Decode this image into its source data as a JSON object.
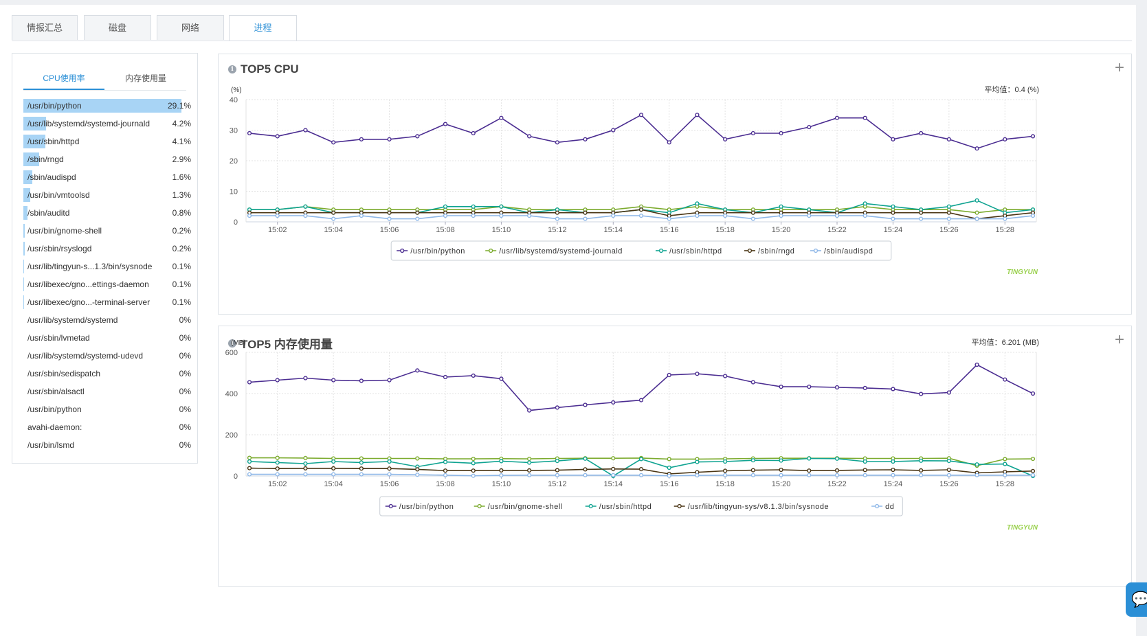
{
  "tabs": [
    {
      "label": "情报汇总"
    },
    {
      "label": "磁盘"
    },
    {
      "label": "网络"
    },
    {
      "label": "进程"
    }
  ],
  "left_panel": {
    "subtabs": [
      {
        "label": "CPU使用率"
      },
      {
        "label": "内存使用量"
      }
    ],
    "processes": [
      {
        "name": "/usr/bin/python",
        "value": "29.1%",
        "ratio": 1.0
      },
      {
        "name": "/usr/lib/systemd/systemd-journald",
        "value": "4.2%",
        "ratio": 0.144
      },
      {
        "name": "/usr/sbin/httpd",
        "value": "4.1%",
        "ratio": 0.141
      },
      {
        "name": "/sbin/rngd",
        "value": "2.9%",
        "ratio": 0.1
      },
      {
        "name": "/sbin/audispd",
        "value": "1.6%",
        "ratio": 0.055
      },
      {
        "name": "/usr/bin/vmtoolsd",
        "value": "1.3%",
        "ratio": 0.045
      },
      {
        "name": "/sbin/auditd",
        "value": "0.8%",
        "ratio": 0.027
      },
      {
        "name": "/usr/bin/gnome-shell",
        "value": "0.2%",
        "ratio": 0.007
      },
      {
        "name": "/usr/sbin/rsyslogd",
        "value": "0.2%",
        "ratio": 0.007
      },
      {
        "name": "/usr/lib/tingyun-s...1.3/bin/sysnode",
        "value": "0.1%",
        "ratio": 0.003
      },
      {
        "name": "/usr/libexec/gno...ettings-daemon",
        "value": "0.1%",
        "ratio": 0.003
      },
      {
        "name": "/usr/libexec/gno...-terminal-server",
        "value": "0.1%",
        "ratio": 0.003
      },
      {
        "name": "/usr/lib/systemd/systemd",
        "value": "0%",
        "ratio": 0
      },
      {
        "name": "/usr/sbin/lvmetad",
        "value": "0%",
        "ratio": 0
      },
      {
        "name": "/usr/lib/systemd/systemd-udevd",
        "value": "0%",
        "ratio": 0
      },
      {
        "name": "/usr/sbin/sedispatch",
        "value": "0%",
        "ratio": 0
      },
      {
        "name": "/usr/sbin/alsactl",
        "value": "0%",
        "ratio": 0
      },
      {
        "name": "/usr/bin/python",
        "value": "0%",
        "ratio": 0
      },
      {
        "name": "avahi-daemon:",
        "value": "0%",
        "ratio": 0
      },
      {
        "name": "/usr/bin/lsmd",
        "value": "0%",
        "ratio": 0
      }
    ]
  },
  "icons": {
    "info": "info-icon",
    "plus": "plus-icon",
    "chat": "chat-icon"
  },
  "colors": {
    "accent": "#2b8fd6",
    "bar": "#a8d4f5",
    "series": [
      "#4b2d91",
      "#7cab2e",
      "#0fa391",
      "#4a3514",
      "#8fb8e8"
    ]
  },
  "chart_data": [
    {
      "type": "line",
      "title": "TOP5 CPU",
      "unit_label": "(%)",
      "avg_label": "平均值：",
      "avg_value": "0.4 (%)",
      "watermark": "TINGYUN",
      "ylim": [
        0,
        40
      ],
      "yticks": [
        "0",
        "10",
        "20",
        "30",
        "40"
      ],
      "x_tick_labels": [
        "15:02",
        "15:04",
        "15:06",
        "15:08",
        "15:10",
        "15:12",
        "15:14",
        "15:16",
        "15:18",
        "15:20",
        "15:22",
        "15:24",
        "15:26",
        "15:28"
      ],
      "series": [
        {
          "name": "/usr/bin/python",
          "values": [
            29,
            28,
            30,
            26,
            27,
            27,
            28,
            32,
            29,
            34,
            28,
            26,
            27,
            30,
            35,
            26,
            35,
            27,
            29,
            29,
            31,
            34,
            34,
            27,
            29,
            27,
            24,
            27,
            28
          ]
        },
        {
          "name": "/usr/lib/systemd/systemd-journald",
          "values": [
            4,
            4,
            5,
            4,
            4,
            4,
            4,
            4,
            4,
            5,
            4,
            4,
            4,
            4,
            5,
            4,
            5,
            4,
            4,
            4,
            4,
            4,
            5,
            4,
            4,
            4,
            3,
            4,
            4
          ]
        },
        {
          "name": "/usr/sbin/httpd",
          "values": [
            4,
            4,
            5,
            3,
            3,
            3,
            3,
            5,
            5,
            5,
            3,
            4,
            3,
            3,
            4,
            3,
            6,
            4,
            3,
            5,
            4,
            3,
            6,
            5,
            4,
            5,
            7,
            3,
            4
          ]
        },
        {
          "name": "/sbin/rngd",
          "values": [
            3,
            3,
            3,
            3,
            3,
            3,
            3,
            3,
            3,
            3,
            3,
            3,
            3,
            3,
            4,
            2,
            3,
            3,
            3,
            3,
            3,
            3,
            3,
            3,
            3,
            3,
            1,
            2,
            3
          ]
        },
        {
          "name": "/sbin/audispd",
          "values": [
            2,
            2,
            2,
            1,
            2,
            1,
            1,
            2,
            2,
            2,
            2,
            1,
            1,
            2,
            2,
            1,
            2,
            2,
            1,
            2,
            2,
            2,
            2,
            1,
            1,
            1,
            1,
            1,
            2
          ]
        }
      ]
    },
    {
      "type": "line",
      "title": "TOP5 内存使用量",
      "unit_label": "(MB)",
      "avg_label": "平均值：",
      "avg_value": "6.201 (MB)",
      "watermark": "TINGYUN",
      "ylim": [
        0,
        600
      ],
      "yticks": [
        "0",
        "200",
        "400",
        "600"
      ],
      "x_tick_labels": [
        "15:02",
        "15:04",
        "15:06",
        "15:08",
        "15:10",
        "15:12",
        "15:14",
        "15:16",
        "15:18",
        "15:20",
        "15:22",
        "15:24",
        "15:26",
        "15:28"
      ],
      "series": [
        {
          "name": "/usr/bin/python",
          "values": [
            455,
            465,
            475,
            465,
            462,
            465,
            512,
            480,
            487,
            472,
            318,
            332,
            345,
            357,
            368,
            490,
            496,
            485,
            455,
            433,
            433,
            430,
            427,
            422,
            398,
            405,
            540,
            468,
            400
          ]
        },
        {
          "name": "/usr/bin/gnome-shell",
          "values": [
            88,
            88,
            87,
            85,
            85,
            85,
            85,
            83,
            83,
            84,
            83,
            85,
            86,
            86,
            87,
            82,
            82,
            83,
            85,
            86,
            86,
            86,
            85,
            85,
            85,
            86,
            50,
            82,
            83
          ]
        },
        {
          "name": "/usr/sbin/httpd",
          "values": [
            70,
            65,
            60,
            70,
            65,
            70,
            45,
            68,
            62,
            72,
            65,
            73,
            84,
            0,
            82,
            40,
            68,
            70,
            76,
            75,
            85,
            84,
            70,
            70,
            74,
            73,
            56,
            58,
            0
          ]
        },
        {
          "name": "/usr/lib/tingyun-sys/v8.1.3/bin/sysnode",
          "values": [
            38,
            36,
            37,
            37,
            36,
            36,
            32,
            26,
            26,
            27,
            27,
            28,
            32,
            34,
            33,
            10,
            18,
            25,
            28,
            30,
            26,
            27,
            29,
            30,
            27,
            30,
            15,
            20,
            24
          ]
        },
        {
          "name": "dd",
          "values": [
            8,
            8,
            8,
            8,
            8,
            8,
            6,
            4,
            1,
            3,
            4,
            4,
            4,
            4,
            4,
            1,
            3,
            4,
            4,
            4,
            4,
            4,
            4,
            4,
            4,
            4,
            4,
            4,
            4
          ]
        }
      ]
    }
  ]
}
